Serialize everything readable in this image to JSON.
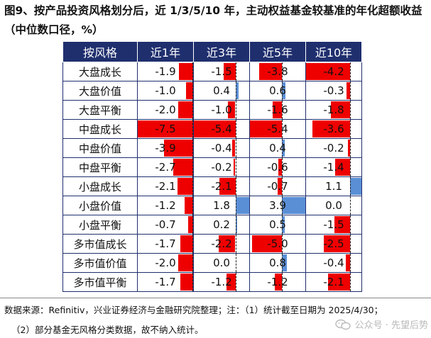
{
  "title": "图9、按产品投资风格划分后，近 1/3/5/10 年，主动权益基金较基准的年化超额收益（中位数口径，%）",
  "table": {
    "headers": [
      "按风格",
      "近1年",
      "近3年",
      "近5年",
      "近10年"
    ],
    "rows": [
      {
        "label": "大盘成长",
        "values": [
          "-1.9",
          "-1.5",
          "-3.8",
          "-4.2"
        ]
      },
      {
        "label": "大盘价值",
        "values": [
          "-1.0",
          "0.4",
          "0.6",
          "-0.3"
        ]
      },
      {
        "label": "大盘平衡",
        "values": [
          "-2.0",
          "-1.0",
          "-1.6",
          "-1.8"
        ]
      },
      {
        "label": "中盘成长",
        "values": [
          "-7.5",
          "-5.4",
          "-5.4",
          "-3.6"
        ]
      },
      {
        "label": "中盘价值",
        "values": [
          "-3.9",
          "-0.4",
          "0.4",
          "-0.2"
        ]
      },
      {
        "label": "中盘平衡",
        "values": [
          "-2.7",
          "-0.2",
          "-0.6",
          "-1.4"
        ]
      },
      {
        "label": "小盘成长",
        "values": [
          "-2.1",
          "-2.1",
          "-0.7",
          "1.1"
        ]
      },
      {
        "label": "小盘价值",
        "values": [
          "-1.2",
          "1.8",
          "3.9",
          "0.0"
        ]
      },
      {
        "label": "小盘平衡",
        "values": [
          "-0.7",
          "0.2",
          "0.5",
          "-1.5"
        ]
      },
      {
        "label": "多市值成长",
        "values": [
          "-1.7",
          "-2.2",
          "-5.0",
          "-2.5"
        ]
      },
      {
        "label": "多市值价值",
        "values": [
          "-2.0",
          "0.0",
          "0.8",
          "-0.4"
        ]
      },
      {
        "label": "多市值平衡",
        "values": [
          "-1.7",
          "-1.2",
          "-1.2",
          "-2.1"
        ]
      }
    ]
  },
  "bar_scale": {
    "max_negative": [
      7.5,
      5.4,
      5.4,
      4.2
    ],
    "max_positive": [
      0,
      1.8,
      3.9,
      1.1
    ]
  },
  "colors": {
    "negative": "#ee0000",
    "positive": "#5a8fd6",
    "header_bg": "#1f2f6e"
  },
  "footer": {
    "line1": "数据来源：Refinitiv，兴业证券经济与金融研究院整理；注：（1）统计截至日期为 2025/4/30；",
    "line2": "（2）部分基金无风格分类数据，故不纳入统计。"
  },
  "watermark": {
    "text": "公众号 · 先望后势",
    "icon": "wechat-icon"
  }
}
